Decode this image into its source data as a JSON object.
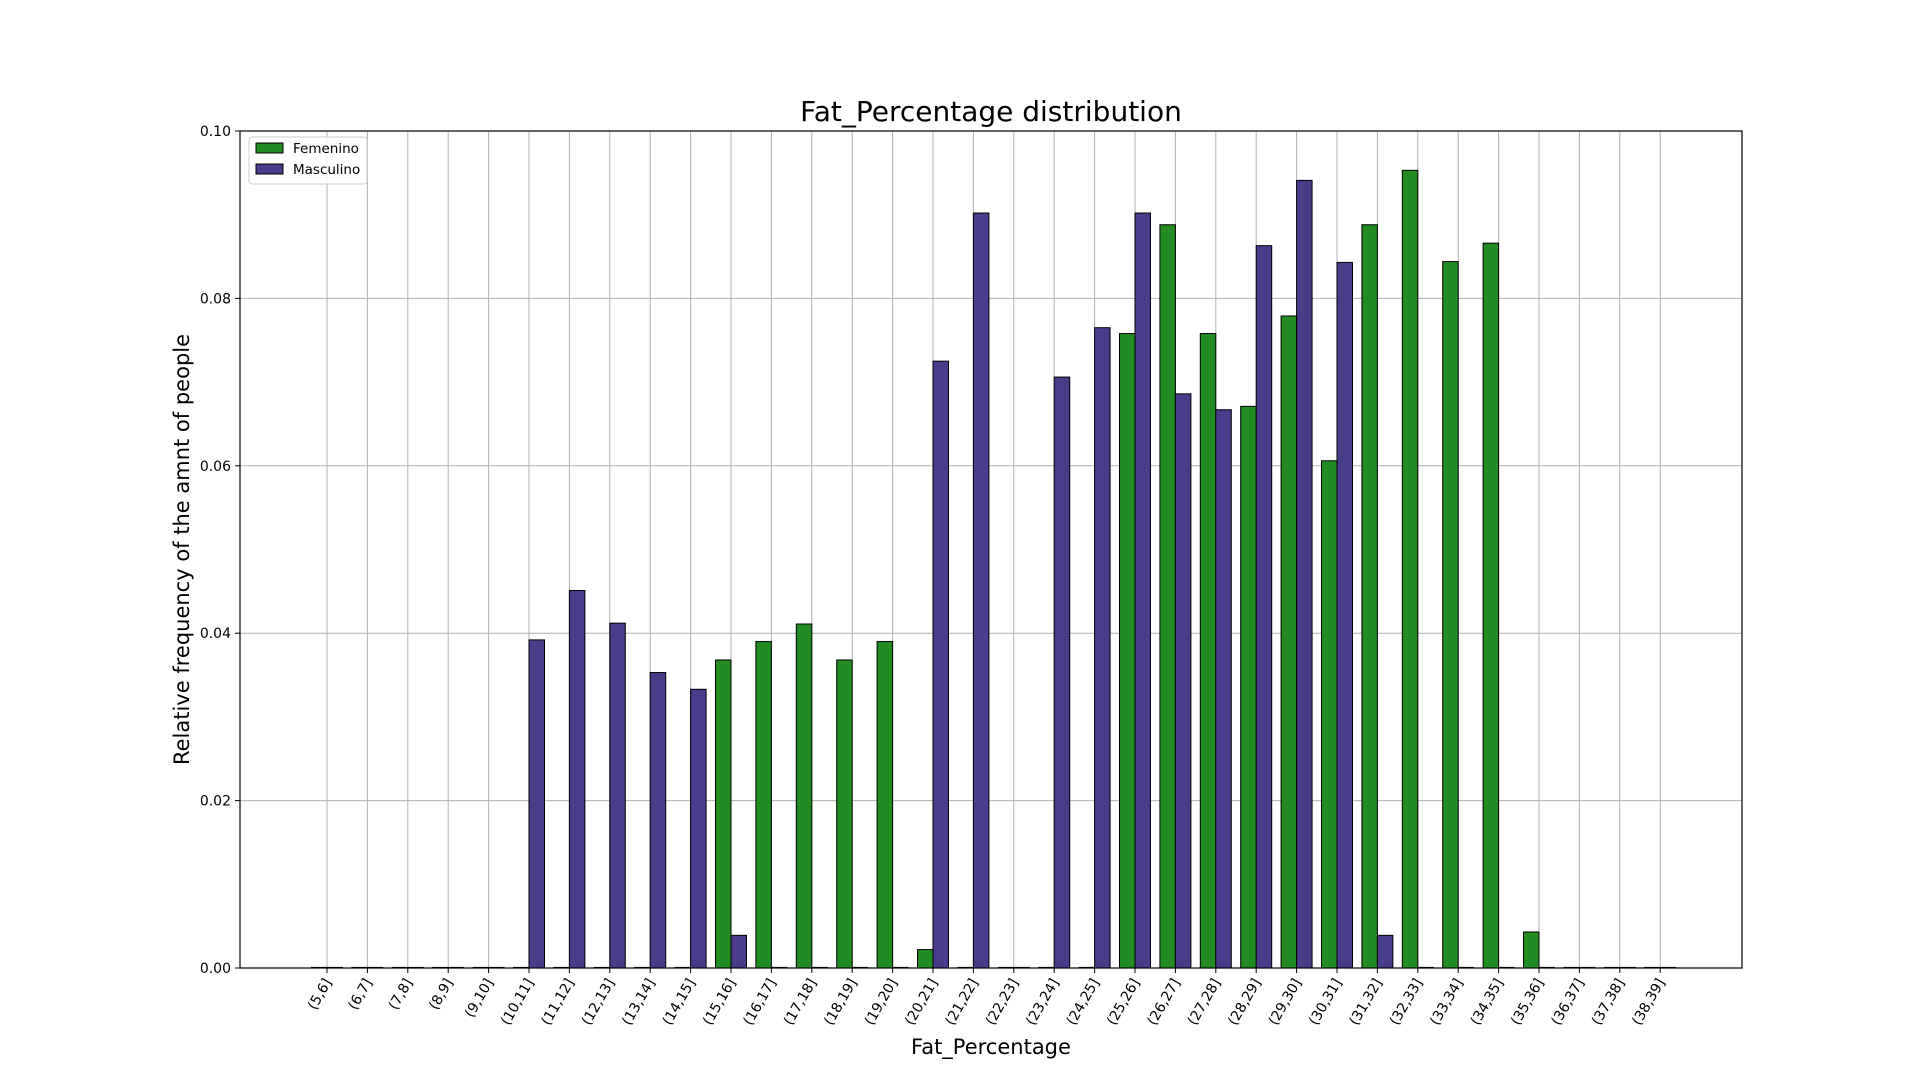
{
  "chart_data": {
    "type": "bar",
    "title": "Fat_Percentage distribution",
    "xlabel": "Fat_Percentage",
    "ylabel": "Relative frequency of the amnt of people",
    "ylim": [
      0,
      0.1
    ],
    "yticks": [
      "0.00",
      "0.02",
      "0.04",
      "0.06",
      "0.08",
      "0.10"
    ],
    "grid": true,
    "legend_position": "top-left",
    "categories": [
      "(5,6]",
      "(6,7]",
      "(7,8]",
      "(8,9]",
      "(9,10]",
      "(10,11]",
      "(11,12]",
      "(12,13]",
      "(13,14]",
      "(14,15]",
      "(15,16]",
      "(16,17]",
      "(17,18]",
      "(18,19]",
      "(19,20]",
      "(20,21]",
      "(21,22]",
      "(22,23]",
      "(23,24]",
      "(24,25]",
      "(25,26]",
      "(26,27]",
      "(27,28]",
      "(28,29]",
      "(29,30]",
      "(30,31]",
      "(31,32]",
      "(32,33]",
      "(33,34]",
      "(34,35]",
      "(35,36]",
      "(36,37]",
      "(37,38]",
      "(38,39]"
    ],
    "series": [
      {
        "name": "Femenino",
        "color": "#228b22",
        "values": [
          0,
          0,
          0,
          0,
          0,
          0,
          0,
          0,
          0,
          0,
          0.0368,
          0.039,
          0.0411,
          0.0368,
          0.039,
          0.0022,
          0,
          0,
          0,
          0,
          0.0758,
          0.0888,
          0.0758,
          0.0671,
          0.0779,
          0.0606,
          0.0888,
          0.0953,
          0.0844,
          0.0866,
          0.0043,
          0,
          0,
          0
        ]
      },
      {
        "name": "Masculino",
        "color": "#483d8b",
        "values": [
          0,
          0,
          0,
          0,
          0,
          0.0392,
          0.0451,
          0.0412,
          0.0353,
          0.0333,
          0.0039,
          0,
          0,
          0,
          0,
          0.0725,
          0.0902,
          0,
          0.0706,
          0.0765,
          0.0902,
          0.0686,
          0.0667,
          0.0863,
          0.0941,
          0.0843,
          0.0039,
          0,
          0,
          0,
          0,
          0,
          0,
          0
        ]
      }
    ]
  }
}
